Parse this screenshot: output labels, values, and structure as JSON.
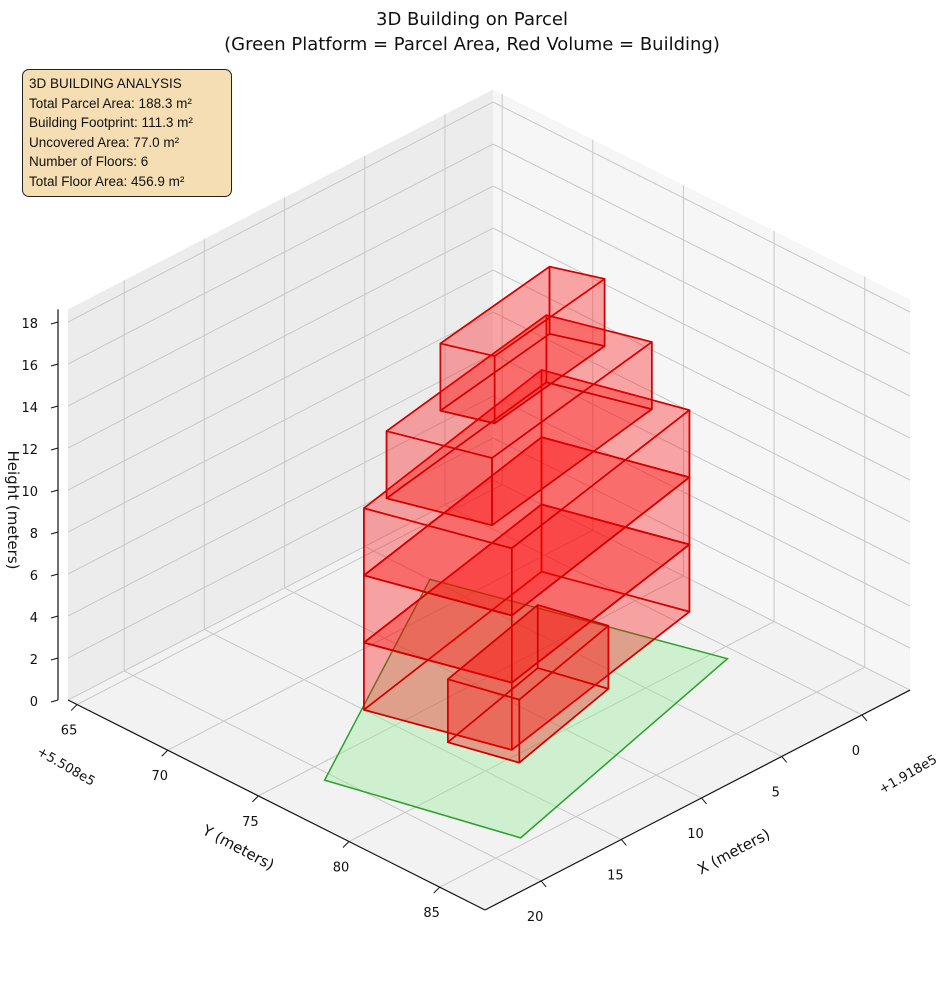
{
  "chart_data": {
    "type": "3d-polygons",
    "title": "3D Building on Parcel",
    "subtitle": "(Green Platform = Parcel Area, Red Volume = Building)",
    "xlabel": "X (meters)",
    "ylabel": "Y (meters)",
    "zlabel": "Height (meters)",
    "x_offset_text": "+1.918e5",
    "y_offset_text": "+5.508e5",
    "xlim": [
      -3,
      23.5
    ],
    "ylim": [
      64.5,
      87.5
    ],
    "zlim": [
      0,
      18.6
    ],
    "x_ticks": [
      0,
      5,
      10,
      15,
      20
    ],
    "y_ticks": [
      65,
      70,
      75,
      80,
      85
    ],
    "z_ticks": [
      0,
      2,
      4,
      6,
      8,
      10,
      12,
      14,
      16,
      18
    ],
    "grid": true,
    "parcel": {
      "color": "#2ca02c",
      "fill": "#90ee90",
      "polygon": [
        [
          20.5,
          76.0
        ],
        [
          18.0,
          84.6
        ],
        [
          0.7,
          80.7
        ],
        [
          5.0,
          68.1
        ]
      ]
    },
    "building": {
      "color": "#ff0000",
      "edge": "#d40000",
      "boxes": [
        {
          "footprint": [
            [
              15.0,
              73.3
            ],
            [
              12.9,
              79.6
            ],
            [
              -1.0,
              77.1
            ],
            [
              1.1,
              70.8
            ]
          ],
          "z": [
            0,
            3.2
          ]
        },
        {
          "footprint": [
            [
              15.0,
              73.3
            ],
            [
              12.9,
              79.6
            ],
            [
              -1.0,
              77.1
            ],
            [
              1.1,
              70.8
            ]
          ],
          "z": [
            3.2,
            6.4
          ]
        },
        {
          "footprint": [
            [
              15.0,
              73.3
            ],
            [
              12.9,
              79.6
            ],
            [
              -1.0,
              77.1
            ],
            [
              1.1,
              70.8
            ]
          ],
          "z": [
            6.4,
            9.6
          ]
        },
        {
          "footprint": [
            [
              13.7,
              73.4
            ],
            [
              12.1,
              77.8
            ],
            [
              0.1,
              76.0
            ],
            [
              1.7,
              71.6
            ]
          ],
          "z": [
            9.6,
            12.8
          ]
        },
        {
          "footprint": [
            [
              10.8,
              73.8
            ],
            [
              9.9,
              76.0
            ],
            [
              1.8,
              74.9
            ],
            [
              2.75,
              72.7
            ]
          ],
          "z": [
            12.8,
            16.0
          ]
        },
        {
          "footprint": [
            [
              14.4,
              77.4
            ],
            [
              13.45,
              80.5
            ],
            [
              6.2,
              79.0
            ],
            [
              7.1,
              75.9
            ]
          ],
          "z": [
            0,
            3.0
          ]
        }
      ]
    },
    "info_box": {
      "lines": [
        "3D BUILDING ANALYSIS",
        "Total Parcel Area: 188.3 m²",
        "Building Footprint: 111.3 m²",
        "Uncovered Area: 77.0 m²",
        "Number of Floors: 6",
        "Total Floor Area: 456.9 m²"
      ],
      "background": "#f5deb3"
    }
  }
}
